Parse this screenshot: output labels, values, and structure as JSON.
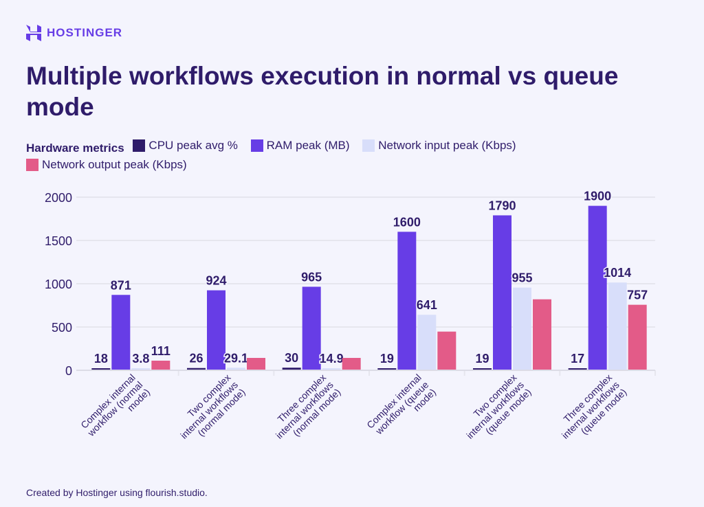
{
  "brand": {
    "name": "HOSTINGER"
  },
  "title": "Multiple workflows execution in normal vs queue mode",
  "footer": "Created by Hostinger using flourish.studio.",
  "chart_data": {
    "type": "bar",
    "title": "Multiple workflows execution in normal vs queue mode",
    "legend_title": "Hardware metrics",
    "legend_position": "top",
    "categories": [
      "Complex internal workflow (normal mode)",
      "Two complex internal workflows (normal mode)",
      "Three complex internal workflows (normal mode)",
      "Complex internal workflow (queue mode)",
      "Two complex internal workflows (queue mode)",
      "Three complex internal workflows (queue mode)"
    ],
    "series": [
      {
        "name": "CPU peak avg %",
        "color": "#2f1c6a",
        "values": [
          18,
          26,
          30,
          19,
          19,
          17
        ],
        "labels": [
          "18",
          "26",
          "30",
          "19",
          "19",
          "17"
        ]
      },
      {
        "name": "RAM peak (MB)",
        "color": "#673de6",
        "values": [
          871,
          924,
          965,
          1600,
          1790,
          1900
        ],
        "labels": [
          "871",
          "924",
          "965",
          "1600",
          "1790",
          "1900"
        ]
      },
      {
        "name": "Network input peak (Kbps)",
        "color": "#d8defa",
        "values": [
          3.8,
          29.1,
          14.9,
          641,
          955,
          1014
        ],
        "labels": [
          "3.8",
          "29.1",
          "14.9",
          "641",
          "955",
          "1014"
        ]
      },
      {
        "name": "Network output peak (Kbps)",
        "color": "#e35b88",
        "values": [
          111,
          143,
          143,
          447,
          820,
          757
        ],
        "labels": [
          "111",
          "",
          "",
          "",
          "",
          "757"
        ]
      }
    ],
    "ylim": [
      0,
      2000
    ],
    "yticks": [
      "0",
      "500",
      "1000",
      "1500",
      "2000"
    ],
    "grid": true
  }
}
